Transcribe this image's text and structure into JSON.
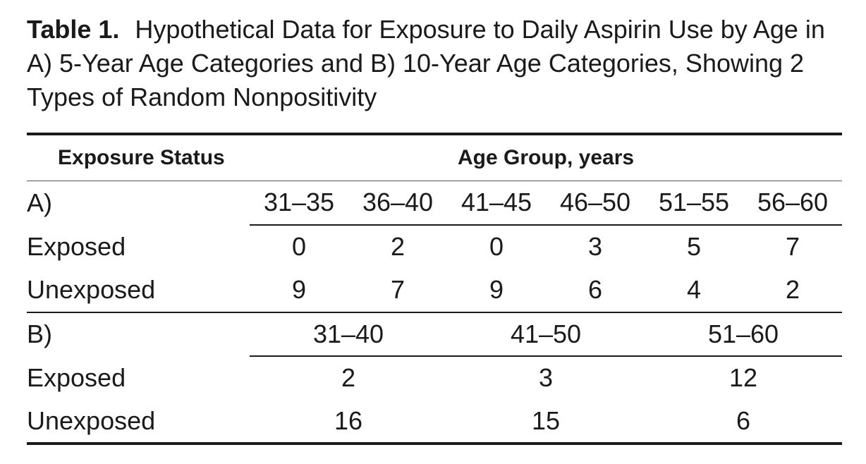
{
  "caption": {
    "label": "Table 1.",
    "text": "Hypothetical Data for Exposure to Daily Aspirin Use by Age in A) 5-Year Age Categories and B) 10-Year Age Categories, Showing 2 Types of Random Nonpositivity"
  },
  "header": {
    "exposure_status": "Exposure Status",
    "age_group": "Age Group, years"
  },
  "section_a": {
    "label": "A)",
    "age_groups": [
      "31–35",
      "36–40",
      "41–45",
      "46–50",
      "51–55",
      "56–60"
    ],
    "rows": [
      {
        "label": "Exposed",
        "values": [
          "0",
          "2",
          "0",
          "3",
          "5",
          "7"
        ]
      },
      {
        "label": "Unexposed",
        "values": [
          "9",
          "7",
          "9",
          "6",
          "4",
          "2"
        ]
      }
    ]
  },
  "section_b": {
    "label": "B)",
    "age_groups": [
      "31–40",
      "41–50",
      "51–60"
    ],
    "rows": [
      {
        "label": "Exposed",
        "values": [
          "2",
          "3",
          "12"
        ]
      },
      {
        "label": "Unexposed",
        "values": [
          "16",
          "15",
          "6"
        ]
      }
    ]
  }
}
